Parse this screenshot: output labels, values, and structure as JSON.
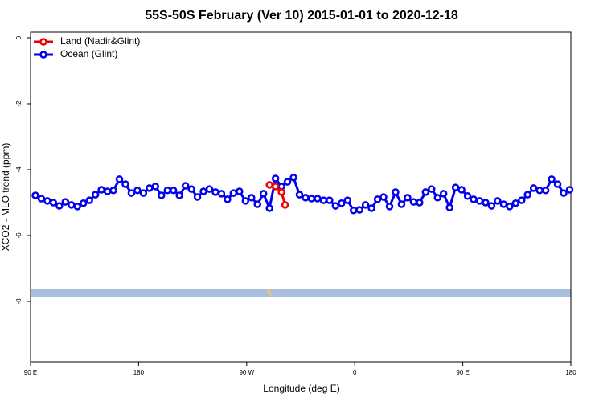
{
  "chart_data": {
    "type": "line",
    "title": "55S-50S February (Ver 10)   2015-01-01 to 2020-12-18",
    "x_label": "Longitude (deg E)",
    "y_label": "XCO2 - MLO trend (ppm)",
    "xlim": [
      90,
      540
    ],
    "ylim": [
      -9.83,
      0.17
    ],
    "xticks": [
      {
        "value": 90,
        "label": "90 E"
      },
      {
        "value": 180,
        "label": "180"
      },
      {
        "value": 270,
        "label": "90 W"
      },
      {
        "value": 360,
        "label": "0"
      },
      {
        "value": 450,
        "label": "90 E"
      },
      {
        "value": 540,
        "label": "180"
      }
    ],
    "yticks": [
      0,
      -2,
      -4,
      -6,
      -8
    ],
    "legend": "top-left",
    "series": [
      {
        "name": "Land (Nadir&Glint)",
        "color": "#ee0000",
        "x": [
          289,
          294,
          299,
          302
        ],
        "values": [
          -4.46,
          -4.51,
          -4.68,
          -5.07
        ]
      },
      {
        "name": "Ocean (Glint)",
        "color": "#0000ee",
        "x": [
          94,
          99,
          104,
          109,
          114,
          119,
          124,
          129,
          134,
          139,
          144,
          149,
          154,
          159,
          164,
          169,
          174,
          179,
          184,
          189,
          194,
          199,
          204,
          209,
          214,
          219,
          224,
          229,
          234,
          239,
          244,
          249,
          254,
          259,
          264,
          269,
          274,
          279,
          284,
          289,
          294,
          299,
          304,
          309,
          314,
          319,
          324,
          329,
          334,
          339,
          344,
          349,
          354,
          359,
          364,
          369,
          374,
          379,
          384,
          389,
          394,
          399,
          404,
          409,
          414,
          419,
          424,
          429,
          434,
          439,
          444,
          449,
          454,
          459,
          464,
          469,
          474,
          479,
          484,
          489,
          494,
          499,
          504,
          509,
          514,
          519,
          524,
          529,
          534,
          539
        ],
        "values": [
          -4.78,
          -4.88,
          -4.95,
          -5.0,
          -5.1,
          -4.98,
          -5.07,
          -5.12,
          -5.02,
          -4.93,
          -4.76,
          -4.61,
          -4.66,
          -4.63,
          -4.29,
          -4.44,
          -4.71,
          -4.63,
          -4.71,
          -4.56,
          -4.51,
          -4.78,
          -4.63,
          -4.63,
          -4.78,
          -4.49,
          -4.59,
          -4.83,
          -4.66,
          -4.59,
          -4.68,
          -4.73,
          -4.9,
          -4.71,
          -4.66,
          -4.95,
          -4.85,
          -5.05,
          -4.73,
          -5.17,
          -4.27,
          -4.51,
          -4.37,
          -4.24,
          -4.76,
          -4.85,
          -4.88,
          -4.88,
          -4.93,
          -4.93,
          -5.1,
          -5.02,
          -4.93,
          -5.24,
          -5.22,
          -5.07,
          -5.17,
          -4.9,
          -4.83,
          -5.12,
          -4.68,
          -5.05,
          -4.85,
          -4.98,
          -5.0,
          -4.68,
          -4.59,
          -4.85,
          -4.73,
          -5.15,
          -4.54,
          -4.61,
          -4.8,
          -4.9,
          -4.95,
          -5.0,
          -5.1,
          -4.95,
          -5.05,
          -5.12,
          -5.02,
          -4.93,
          -4.76,
          -4.56,
          -4.63,
          -4.63,
          -4.29,
          -4.44,
          -4.71,
          -4.61
        ]
      }
    ]
  }
}
